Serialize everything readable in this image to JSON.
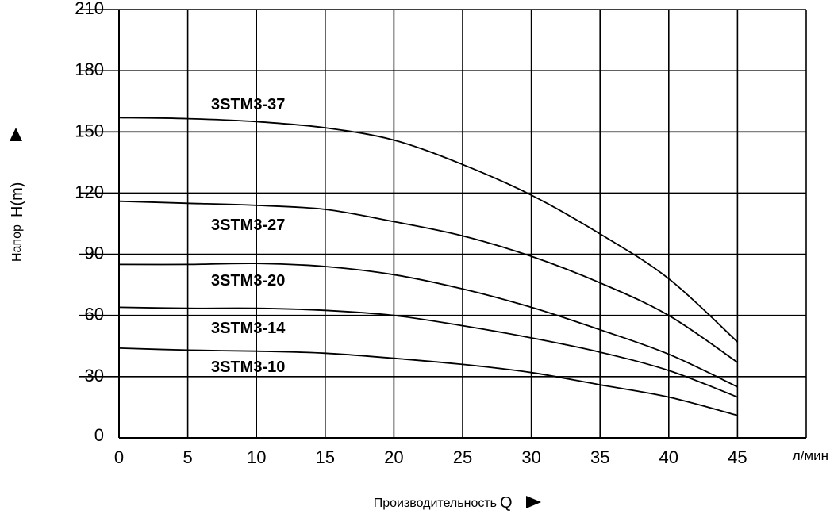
{
  "chart_data": {
    "type": "line",
    "title": "",
    "xlabel": "Производительность",
    "xsymbol": "Q",
    "xunit": "л/мин",
    "ylabel": "Напор",
    "ysymbol": "H(m)",
    "xlim": [
      0,
      50
    ],
    "ylim": [
      0,
      210
    ],
    "xticks": [
      0,
      5,
      10,
      15,
      20,
      25,
      30,
      35,
      40,
      45
    ],
    "yticks": [
      0,
      30,
      60,
      90,
      120,
      150,
      180,
      210
    ],
    "grid": true,
    "legend": "inline",
    "series": [
      {
        "name": "3STM3-37",
        "x": [
          0,
          5,
          10,
          15,
          20,
          25,
          30,
          35,
          40,
          45
        ],
        "y": [
          157,
          156.5,
          155,
          152,
          146,
          134,
          119,
          100,
          78,
          47
        ]
      },
      {
        "name": "3STM3-27",
        "x": [
          0,
          5,
          10,
          15,
          20,
          25,
          30,
          35,
          40,
          45
        ],
        "y": [
          116,
          115,
          114,
          112,
          106,
          99,
          89,
          76,
          60,
          37
        ]
      },
      {
        "name": "3STM3-20",
        "x": [
          0,
          5,
          10,
          15,
          20,
          25,
          30,
          35,
          40,
          45
        ],
        "y": [
          85,
          85,
          85.5,
          84,
          80,
          73,
          64,
          53,
          41,
          25
        ]
      },
      {
        "name": "3STM3-14",
        "x": [
          0,
          5,
          10,
          15,
          20,
          25,
          30,
          35,
          40,
          45
        ],
        "y": [
          64,
          63.5,
          63.5,
          62.5,
          60,
          55,
          49,
          42,
          33,
          20
        ]
      },
      {
        "name": "3STM3-10",
        "x": [
          0,
          5,
          10,
          15,
          20,
          25,
          30,
          35,
          40,
          45
        ],
        "y": [
          44,
          43,
          42.5,
          41.5,
          39,
          36,
          32,
          26,
          20,
          11
        ]
      }
    ],
    "line_color": "#000000",
    "grid_color": "#000000"
  }
}
